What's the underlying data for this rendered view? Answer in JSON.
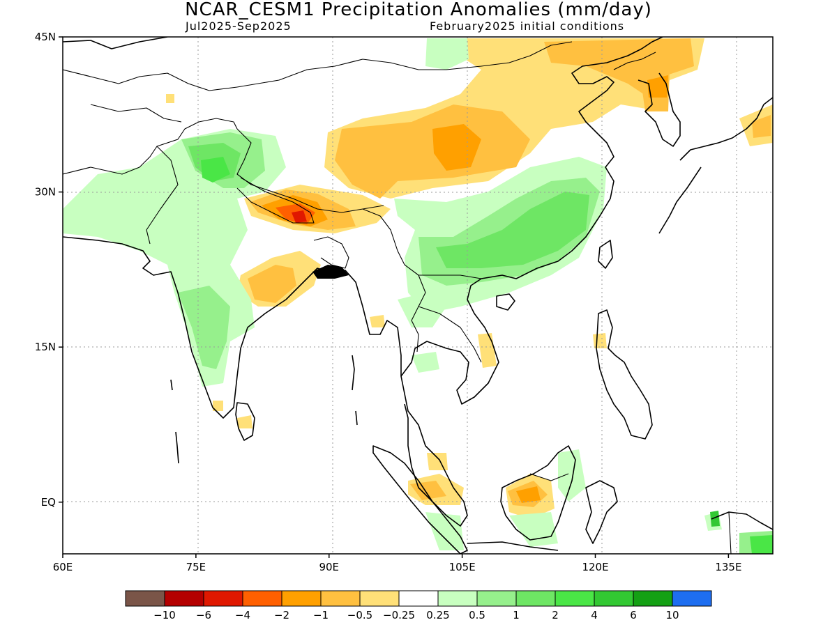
{
  "header": {
    "title": "NCAR_CESM1 Precipitation Anomalies (mm/day)",
    "period": "Jul2025-Sep2025",
    "init": "February2025 initial conditions"
  },
  "map": {
    "lon_range": [
      60,
      140
    ],
    "lat_range": [
      -5,
      45
    ],
    "lon_ticks": [
      {
        "value": 60,
        "label": "60E"
      },
      {
        "value": 75,
        "label": "75E"
      },
      {
        "value": 90,
        "label": "90E"
      },
      {
        "value": 105,
        "label": "105E"
      },
      {
        "value": 120,
        "label": "120E"
      },
      {
        "value": 135,
        "label": "135E"
      }
    ],
    "lat_ticks": [
      {
        "value": 45,
        "label": "45N"
      },
      {
        "value": 30,
        "label": "30N"
      },
      {
        "value": 15,
        "label": "15N"
      },
      {
        "value": 0,
        "label": "EQ"
      }
    ],
    "grid": true
  },
  "colorbar": {
    "colors": [
      "#7a5548",
      "#b40000",
      "#e01800",
      "#ff6000",
      "#ffa000",
      "#ffc040",
      "#ffe078",
      "#ffffff",
      "#c8ffc0",
      "#96f08c",
      "#6ee664",
      "#4ae646",
      "#32c832",
      "#14a014",
      "#1e6ef0"
    ],
    "labels": [
      "−10",
      "−6",
      "−4",
      "−2",
      "−1",
      "−0.5",
      "−0.25",
      "0.25",
      "0.5",
      "1",
      "2",
      "4",
      "6",
      "10"
    ]
  },
  "anomaly_regions": [
    {
      "region": "Northern China / Mongolia",
      "category": -0.5
    },
    {
      "region": "Northeast China / Korea",
      "category": -1
    },
    {
      "region": "Tibetan Plateau",
      "category": -1
    },
    {
      "region": "Nepal Himalaya",
      "category": -4
    },
    {
      "region": "Central India",
      "category": -1
    },
    {
      "region": "Borneo west coast",
      "category": -1
    },
    {
      "region": "Sumatra",
      "category": -0.5
    },
    {
      "region": "Southern China",
      "category": 1
    },
    {
      "region": "Northwest India / Pakistan",
      "category": 0.5
    },
    {
      "region": "Western Himalaya",
      "category": 2
    },
    {
      "region": "Western Ghats",
      "category": 0.5
    },
    {
      "region": "New Guinea",
      "category": 2
    }
  ]
}
